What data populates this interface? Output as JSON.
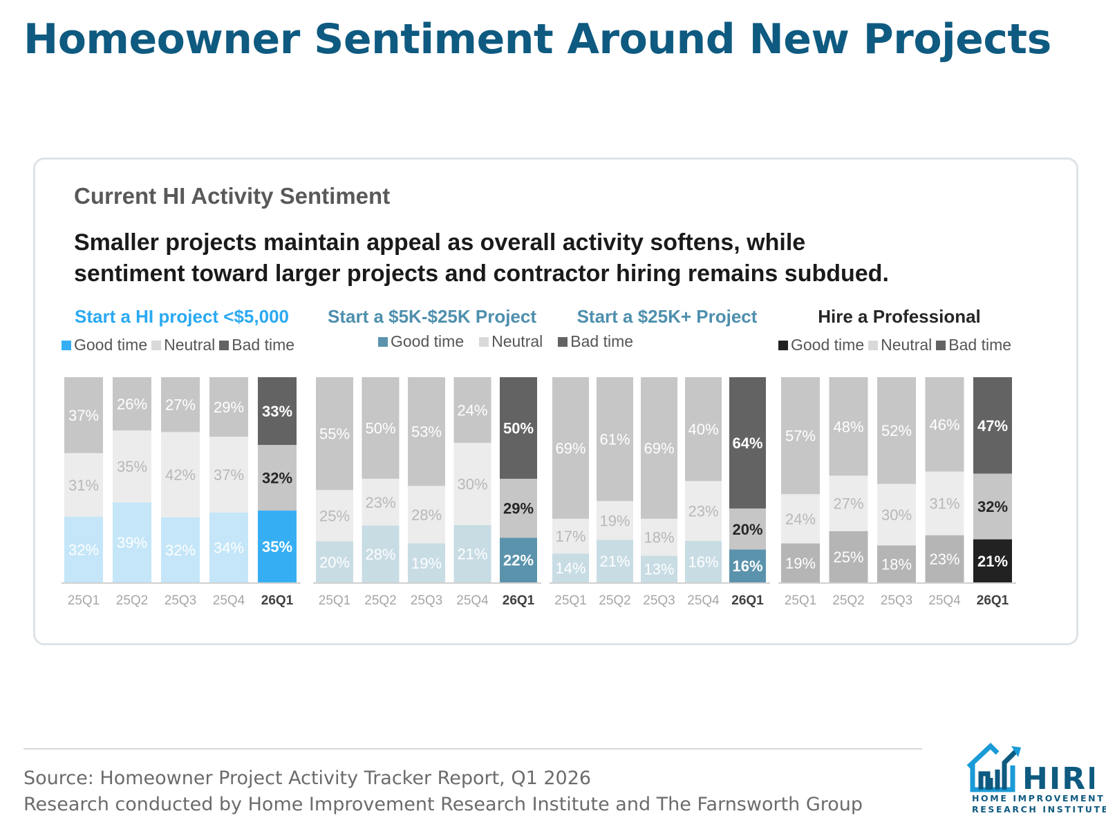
{
  "page": {
    "title": "Homeowner Sentiment Around New Projects"
  },
  "card": {
    "title": "Current HI Activity Sentiment",
    "headline_line1": "Smaller projects maintain appeal as overall activity softens, while",
    "headline_line2": "sentiment toward larger projects and contractor hiring remains subdued."
  },
  "chart_data": [
    {
      "type": "bar",
      "stacked": true,
      "title": "Start a HI project <$5,000",
      "title_color": "#2aa9f2",
      "categories": [
        "25Q1",
        "25Q2",
        "25Q3",
        "25Q4",
        "26Q1"
      ],
      "highlight_category": "26Q1",
      "ylim": [
        0,
        100
      ],
      "legend": [
        "Good time",
        "Neutral",
        "Bad time"
      ],
      "legend_colors": [
        "#36aef4",
        "#d9d9d9",
        "#636363"
      ],
      "series": [
        {
          "name": "Good time",
          "values": [
            32,
            39,
            32,
            34,
            35
          ]
        },
        {
          "name": "Neutral",
          "values": [
            31,
            35,
            42,
            37,
            32
          ]
        },
        {
          "name": "Bad time",
          "values": [
            37,
            26,
            27,
            29,
            33
          ]
        }
      ]
    },
    {
      "type": "bar",
      "stacked": true,
      "title": "Start a $5K-$25K Project",
      "title_color": "#4e8fad",
      "categories": [
        "25Q1",
        "25Q2",
        "25Q3",
        "25Q4",
        "26Q1"
      ],
      "highlight_category": "26Q1",
      "ylim": [
        0,
        100
      ],
      "legend": [
        "Good time",
        "Neutral",
        "Bad time"
      ],
      "legend_colors": [
        "#5b93ad",
        "#d9d9d9",
        "#636363"
      ],
      "series": [
        {
          "name": "Good time",
          "values": [
            20,
            28,
            19,
            21,
            22
          ]
        },
        {
          "name": "Neutral",
          "values": [
            25,
            23,
            28,
            30,
            29
          ]
        },
        {
          "name": "Bad time",
          "values": [
            55,
            50,
            53,
            24,
            50
          ]
        }
      ]
    },
    {
      "type": "bar",
      "stacked": true,
      "title": "Start a $25K+ Project",
      "title_color": "#4e8fad",
      "categories": [
        "25Q1",
        "25Q2",
        "25Q3",
        "25Q4",
        "26Q1"
      ],
      "highlight_category": "26Q1",
      "ylim": [
        0,
        100
      ],
      "legend": [],
      "legend_colors": [],
      "series": [
        {
          "name": "Good time",
          "values": [
            14,
            21,
            13,
            16,
            16
          ]
        },
        {
          "name": "Neutral",
          "values": [
            17,
            19,
            18,
            23,
            20
          ]
        },
        {
          "name": "Bad time",
          "values": [
            69,
            61,
            69,
            40,
            64
          ]
        }
      ]
    },
    {
      "type": "bar",
      "stacked": true,
      "title": "Hire a Professional",
      "title_color": "#262626",
      "categories": [
        "25Q1",
        "25Q2",
        "25Q3",
        "25Q4",
        "26Q1"
      ],
      "highlight_category": "26Q1",
      "ylim": [
        0,
        100
      ],
      "legend": [
        "Good time",
        "Neutral",
        "Bad time"
      ],
      "legend_colors": [
        "#222222",
        "#d9d9d9",
        "#636363"
      ],
      "series": [
        {
          "name": "Good time",
          "values": [
            19,
            25,
            18,
            23,
            21
          ]
        },
        {
          "name": "Neutral",
          "values": [
            24,
            27,
            30,
            31,
            32
          ]
        },
        {
          "name": "Bad time",
          "values": [
            57,
            48,
            52,
            46,
            47
          ]
        }
      ]
    }
  ],
  "colors": {
    "dim": [
      [
        "#c4e6f8",
        "#ececec",
        "#c6c6c6"
      ],
      [
        "#c8dce4",
        "#ececec",
        "#c6c6c6"
      ],
      [
        "#c8dce4",
        "#ececec",
        "#c6c6c6"
      ],
      [
        "#b5b5b5",
        "#ececec",
        "#c6c6c6"
      ]
    ],
    "highlight": [
      [
        "#36aef4",
        "#c6c6c6",
        "#636363"
      ],
      [
        "#5b93ad",
        "#c6c6c6",
        "#636363"
      ],
      [
        "#5b93ad",
        "#c6c6c6",
        "#636363"
      ],
      [
        "#222222",
        "#c6c6c6",
        "#636363"
      ]
    ]
  },
  "footer": {
    "source": "Source: Homeowner Project Activity Tracker Report, Q1 2026",
    "credit": "Research conducted by Home Improvement Research Institute and The Farnsworth Group"
  },
  "logo": {
    "name": "HIRI",
    "line1": "HOME IMPROVEMENT",
    "line2": "RESEARCH INSTITUTE"
  }
}
